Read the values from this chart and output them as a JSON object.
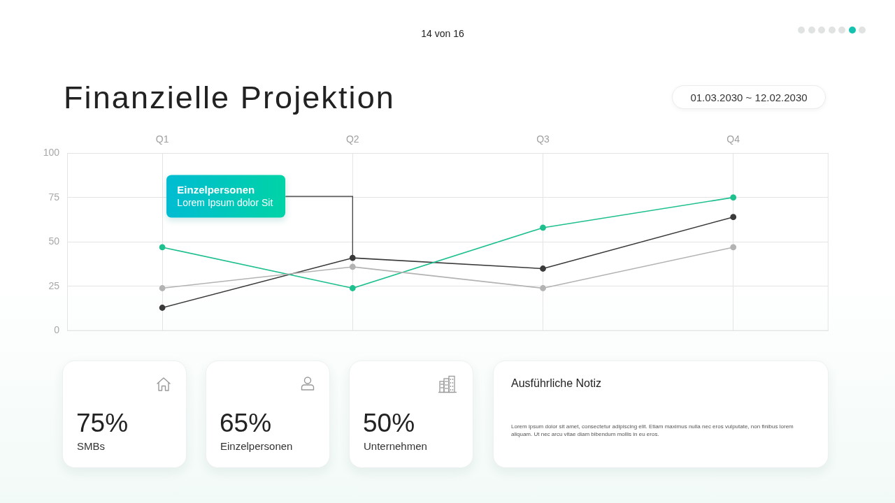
{
  "chart_data": [
    {
      "type": "line",
      "title": "Finanzielle Projektion",
      "subtitle": "01.03.2030 ~ 12.02.2030",
      "annotations": [
        "14 von 16",
        "Einzelpersonen",
        {
          "text": "Lorem Ipsum dolor Sit",
          "x": "Q2",
          "y": 41
        }
      ],
      "categories": [
        "Q1",
        "Q2",
        "Q3",
        "Q4"
      ],
      "series": [
        {
          "color": "#b3b3b3",
          "values": [
            24,
            36,
            24,
            47
          ]
        },
        {
          "color": "#1fc08f",
          "values": [
            47,
            24,
            58,
            75
          ]
        },
        {
          "color": "#3a3a3a",
          "values": [
            13,
            41,
            35,
            64
          ]
        }
      ],
      "ylim": [
        0,
        100
      ],
      "yticks": [
        0,
        25,
        50,
        75,
        100
      ],
      "grid": true,
      "marker": "circle"
    },
    {
      "type": "other",
      "annotations": [
        "75%",
        "SMBs",
        "65%",
        "Einzelpersonen",
        "50%",
        "Unternehmen"
      ]
    },
    {
      "type": "other",
      "title": "Ausführliche Notiz",
      "annotations": [
        "Lorem ipsum dolor sit amet, consectetur adipiscing elit. Etiam maximus nulla nec eros vulputate, non finibus lorem aliquam. Ut nec arcu vitae diam bibendum mollis in eu eros."
      ]
    }
  ]
}
